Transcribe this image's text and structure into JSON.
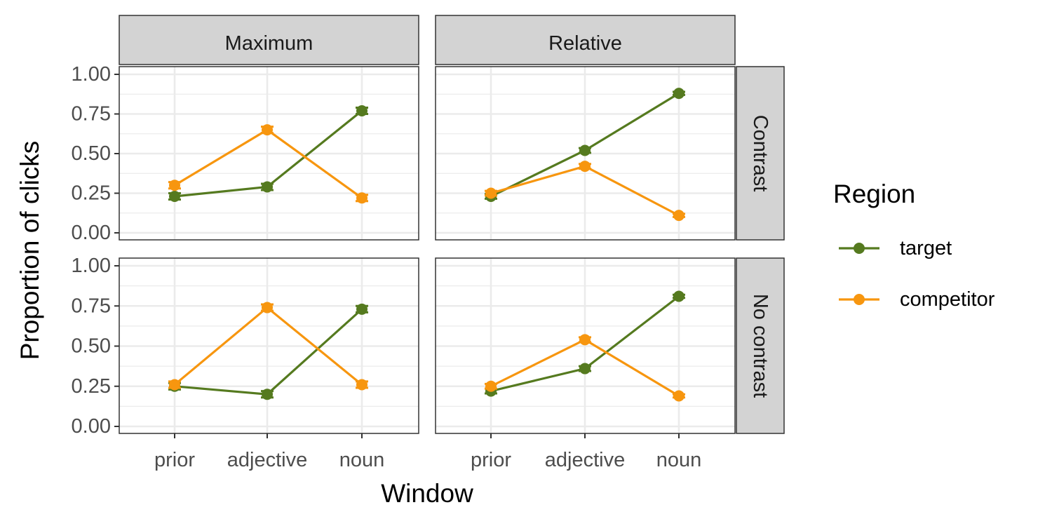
{
  "chart_data": {
    "type": "line",
    "xlabel": "Window",
    "ylabel": "Proportion of clicks",
    "categories": [
      "prior",
      "adjective",
      "noun"
    ],
    "ylim": [
      0,
      1
    ],
    "yticks": [
      "0.00",
      "0.25",
      "0.50",
      "0.75",
      "1.00"
    ],
    "col_facets": [
      "Maximum",
      "Relative"
    ],
    "row_facets": [
      "Contrast",
      "No contrast"
    ],
    "legend": {
      "title": "Region",
      "position": "right",
      "entries": [
        {
          "name": "target",
          "color": "#557a1f"
        },
        {
          "name": "competitor",
          "color": "#f7960f"
        }
      ]
    },
    "panels": [
      {
        "col": "Maximum",
        "row": "Contrast",
        "series": [
          {
            "name": "target",
            "values": [
              0.23,
              0.29,
              0.77
            ],
            "errors": [
              0.02,
              0.02,
              0.02
            ]
          },
          {
            "name": "competitor",
            "values": [
              0.3,
              0.65,
              0.22
            ],
            "errors": [
              0.02,
              0.02,
              0.02
            ]
          }
        ]
      },
      {
        "col": "Relative",
        "row": "Contrast",
        "series": [
          {
            "name": "target",
            "values": [
              0.23,
              0.52,
              0.88
            ],
            "errors": [
              0.015,
              0.015,
              0.01
            ]
          },
          {
            "name": "competitor",
            "values": [
              0.25,
              0.42,
              0.11
            ],
            "errors": [
              0.015,
              0.015,
              0.01
            ]
          }
        ]
      },
      {
        "col": "Maximum",
        "row": "No contrast",
        "series": [
          {
            "name": "target",
            "values": [
              0.25,
              0.2,
              0.73
            ],
            "errors": [
              0.02,
              0.02,
              0.02
            ]
          },
          {
            "name": "competitor",
            "values": [
              0.26,
              0.74,
              0.26
            ],
            "errors": [
              0.02,
              0.02,
              0.02
            ]
          }
        ]
      },
      {
        "col": "Relative",
        "row": "No contrast",
        "series": [
          {
            "name": "target",
            "values": [
              0.22,
              0.36,
              0.81
            ],
            "errors": [
              0.015,
              0.015,
              0.01
            ]
          },
          {
            "name": "competitor",
            "values": [
              0.25,
              0.54,
              0.19
            ],
            "errors": [
              0.015,
              0.015,
              0.01
            ]
          }
        ]
      }
    ]
  }
}
